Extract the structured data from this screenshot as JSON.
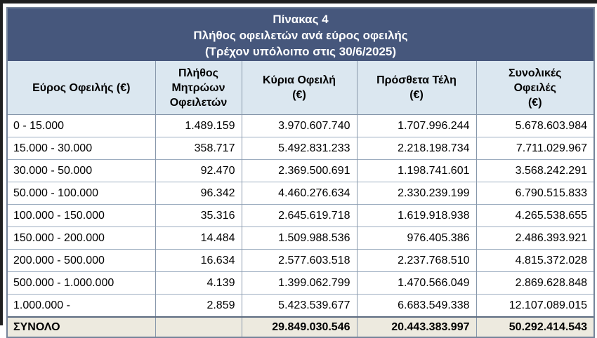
{
  "table": {
    "title_lines": [
      "Πίνακας 4",
      "Πλήθος οφειλετών ανά εύρος οφειλής",
      "(Τρέχον υπόλοιπο στις 30/6/2025)"
    ],
    "columns": [
      "Εύρος Οφειλής (€)",
      "Πλήθος\nΜητρώων\nΟφειλετών",
      "Κύρια Οφειλή\n(€)",
      "Πρόσθετα Τέλη\n(€)",
      "Συνολικές\nΟφειλές\n(€)"
    ],
    "rows": [
      [
        "0 - 15.000",
        "1.489.159",
        "3.970.607.740",
        "1.707.996.244",
        "5.678.603.984"
      ],
      [
        "15.000 - 30.000",
        "358.717",
        "5.492.831.233",
        "2.218.198.734",
        "7.711.029.967"
      ],
      [
        "30.000 - 50.000",
        "92.470",
        "2.369.500.691",
        "1.198.741.601",
        "3.568.242.291"
      ],
      [
        "50.000 - 100.000",
        "96.342",
        "4.460.276.634",
        "2.330.239.199",
        "6.790.515.833"
      ],
      [
        "100.000 - 150.000",
        "35.316",
        "2.645.619.718",
        "1.619.918.938",
        "4.265.538.655"
      ],
      [
        "150.000 - 200.000",
        "14.484",
        "1.509.988.536",
        "976.405.386",
        "2.486.393.921"
      ],
      [
        "200.000 - 500.000",
        "16.634",
        "2.577.603.518",
        "2.237.768.510",
        "4.815.372.028"
      ],
      [
        "500.000 - 1.000.000",
        "4.139",
        "1.399.062.799",
        "1.470.566.049",
        "2.869.628.848"
      ],
      [
        "1.000.000 -",
        "2.859",
        "5.423.539.677",
        "6.683.549.338",
        "12.107.089.015"
      ]
    ],
    "total_row": [
      "ΣΥΝΟΛΟ",
      "",
      "29.849.030.546",
      "20.443.383.997",
      "50.292.414.543"
    ],
    "colors": {
      "title_bg": "#46577c",
      "title_text": "#ffffff",
      "header_bg": "#dbe7f0",
      "total_bg": "#edeadf",
      "border_inner": "#8898ab",
      "border_row": "#9cadc0",
      "border_strong": "#5c6b80",
      "page_edge": "#1f1f1f"
    }
  }
}
